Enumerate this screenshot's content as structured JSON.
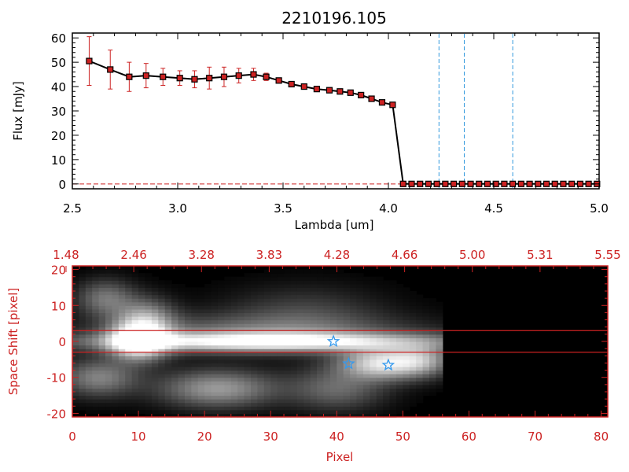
{
  "chart_data": [
    {
      "type": "line",
      "title": "2210196.105",
      "xlabel": "Lambda [um]",
      "ylabel": "Flux [mJy]",
      "xlim": [
        2.5,
        5.0
      ],
      "ylim": [
        -2,
        62
      ],
      "x_ticks": [
        "2.5",
        "3.0",
        "3.5",
        "4.0",
        "4.5",
        "5.0"
      ],
      "y_ticks": [
        "0",
        "10",
        "20",
        "30",
        "40",
        "50",
        "60"
      ],
      "series": [
        {
          "color": "#000000",
          "marker_color": "#cc2222",
          "x": [
            2.58,
            2.68,
            2.77,
            2.85,
            2.93,
            3.01,
            3.08,
            3.15,
            3.22,
            3.29,
            3.36,
            3.42,
            3.48,
            3.54,
            3.6,
            3.66,
            3.72,
            3.77,
            3.82,
            3.87,
            3.92,
            3.97,
            4.02,
            4.07,
            4.11,
            4.15,
            4.19,
            4.23,
            4.27,
            4.31,
            4.35,
            4.39,
            4.43,
            4.47,
            4.51,
            4.55,
            4.59,
            4.63,
            4.67,
            4.71,
            4.75,
            4.79,
            4.83,
            4.87,
            4.91,
            4.95,
            4.99
          ],
          "y": [
            50.5,
            47.0,
            44.0,
            44.5,
            44.0,
            43.5,
            43.0,
            43.5,
            44.0,
            44.5,
            45.0,
            44.0,
            42.5,
            41.0,
            40.0,
            39.0,
            38.5,
            38.0,
            37.5,
            36.5,
            35.0,
            33.5,
            32.5,
            0,
            0,
            0,
            0,
            0,
            0,
            0,
            0,
            0,
            0,
            0,
            0,
            0,
            0,
            0,
            0,
            0,
            0,
            0,
            0,
            0,
            0,
            0,
            0
          ],
          "yerr": [
            10.0,
            8.0,
            6.0,
            5.0,
            3.5,
            3.0,
            3.5,
            4.5,
            4.0,
            3.0,
            2.5,
            1.5,
            1.0,
            1.0,
            1.0,
            1.0,
            1.0,
            1.0,
            1.0,
            1.0,
            1.0,
            1.0,
            1.0,
            0,
            0,
            0,
            0,
            0,
            0,
            0,
            0,
            0,
            0,
            0,
            0,
            0,
            0,
            0,
            0,
            0,
            0,
            0,
            0,
            0,
            0,
            0,
            0
          ]
        }
      ],
      "vlines": [
        4.24,
        4.36,
        4.59
      ],
      "vline_color": "#3399dd",
      "hline": 0,
      "hline_color": "#cc2222",
      "grid": false
    },
    {
      "type": "heatmap",
      "xlabel": "Pixel",
      "ylabel": "Space Shift [pixel]",
      "xlim": [
        0,
        81
      ],
      "ylim": [
        -21,
        21
      ],
      "x_ticks": [
        "0",
        "10",
        "20",
        "30",
        "40",
        "50",
        "60",
        "70",
        "80"
      ],
      "y_ticks": [
        "-20",
        "-10",
        "0",
        "10",
        "20"
      ],
      "top_axis_ticks": [
        "1.48",
        "2.46",
        "3.28",
        "3.83",
        "4.28",
        "4.66",
        "5.00",
        "5.31",
        "5.55"
      ],
      "axis_color": "#cc2222",
      "data_extent_x": [
        0,
        56
      ],
      "aperture_lines": [
        3,
        -3
      ],
      "aperture_color": "#cc2222",
      "blobs": [
        {
          "x": 10,
          "y": 0,
          "amp": 1.0,
          "sx": 3.0,
          "sy": 3.5
        },
        {
          "x": 11,
          "y": 6,
          "amp": 0.55,
          "sx": 3.0,
          "sy": 4.0
        },
        {
          "x": 30,
          "y": 0,
          "amp": 0.9,
          "sx": 18.0,
          "sy": 1.8
        },
        {
          "x": 28,
          "y": 2.5,
          "amp": 0.35,
          "sx": 16.0,
          "sy": 3.5
        },
        {
          "x": 47,
          "y": -6,
          "amp": 0.85,
          "sx": 4.5,
          "sy": 3.0
        },
        {
          "x": 53,
          "y": -5,
          "amp": 0.45,
          "sx": 3.0,
          "sy": 3.0
        },
        {
          "x": 22,
          "y": -13,
          "amp": 0.55,
          "sx": 6.0,
          "sy": 3.5
        },
        {
          "x": 4,
          "y": -10,
          "amp": 0.45,
          "sx": 4.0,
          "sy": 3.5
        },
        {
          "x": 5,
          "y": 12,
          "amp": 0.4,
          "sx": 3.0,
          "sy": 3.5
        },
        {
          "x": 40,
          "y": -13,
          "amp": 0.35,
          "sx": 5.0,
          "sy": 4.0
        },
        {
          "x": 35,
          "y": 8,
          "amp": 0.2,
          "sx": 8.0,
          "sy": 5.0
        }
      ],
      "stars": [
        {
          "x": 39.5,
          "y": 0
        },
        {
          "x": 41.8,
          "y": -6.2
        },
        {
          "x": 47.8,
          "y": -6.6
        }
      ],
      "star_color": "#3399ee"
    }
  ]
}
